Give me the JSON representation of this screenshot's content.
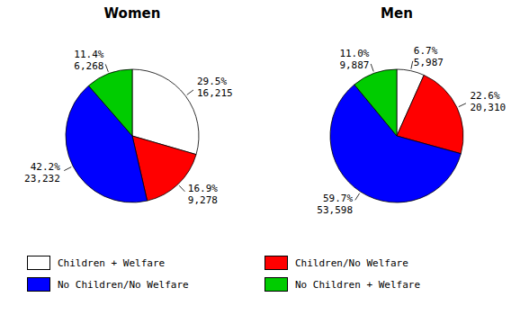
{
  "chart_data": [
    {
      "type": "pie",
      "title": "Women",
      "categories": [
        "Children + Welfare",
        "Children/No Welfare",
        "No Children/No Welfare",
        "No Children + Welfare"
      ],
      "values": [
        29.5,
        16.9,
        42.2,
        11.4
      ],
      "value_labels": [
        "29.5%",
        "16.9%",
        "42.2%",
        "11.4%"
      ],
      "counts": [
        16215,
        9278,
        23232,
        6268
      ],
      "colors": [
        "#ffffff",
        "#ff0000",
        "#0000ff",
        "#00cc00"
      ],
      "data_labels": true,
      "legend": "bottom"
    },
    {
      "type": "pie",
      "title": "Men",
      "categories": [
        "Children + Welfare",
        "Children/No Welfare",
        "No Children/No Welfare",
        "No Children + Welfare"
      ],
      "values": [
        6.7,
        22.6,
        59.7,
        11.0
      ],
      "value_labels": [
        "6.7%",
        "22.6%",
        "59.7%",
        "11.0%"
      ],
      "counts": [
        5987,
        20310,
        53598,
        9887
      ],
      "colors": [
        "#ffffff",
        "#ff0000",
        "#0000ff",
        "#00cc00"
      ],
      "data_labels": true,
      "legend": "bottom"
    }
  ]
}
